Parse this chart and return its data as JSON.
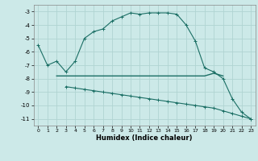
{
  "xlabel": "Humidex (Indice chaleur)",
  "ylabel": "",
  "bg_color": "#cce9e8",
  "grid_color": "#b0d4d2",
  "line_color": "#1a6e64",
  "curve1_x": [
    0,
    1,
    2,
    3,
    4,
    5,
    6,
    7,
    8,
    9,
    10,
    11,
    12,
    13,
    14,
    15,
    16,
    17,
    18,
    19,
    20,
    21,
    22,
    23
  ],
  "curve1_y": [
    -5.5,
    -7.0,
    -6.7,
    -7.5,
    -6.7,
    -5.0,
    -4.5,
    -4.3,
    -3.7,
    -3.4,
    -3.1,
    -3.2,
    -3.1,
    -3.1,
    -3.1,
    -3.2,
    -4.0,
    -5.2,
    -7.2,
    -7.5,
    -8.0,
    -9.5,
    -10.5,
    -11.0
  ],
  "curve2_x": [
    2,
    3,
    4,
    5,
    6,
    7,
    8,
    9,
    10,
    11,
    12,
    13,
    14,
    15,
    16,
    17,
    18,
    19,
    20
  ],
  "curve2_y": [
    -7.8,
    -7.8,
    -7.8,
    -7.8,
    -7.8,
    -7.8,
    -7.8,
    -7.8,
    -7.8,
    -7.8,
    -7.8,
    -7.8,
    -7.8,
    -7.8,
    -7.8,
    -7.8,
    -7.8,
    -7.6,
    -7.8
  ],
  "curve3_x": [
    3,
    4,
    5,
    6,
    7,
    8,
    9,
    10,
    11,
    12,
    13,
    14,
    15,
    16,
    17,
    18,
    19,
    20,
    21,
    22,
    23
  ],
  "curve3_y": [
    -8.6,
    -8.7,
    -8.8,
    -8.9,
    -9.0,
    -9.1,
    -9.2,
    -9.3,
    -9.4,
    -9.5,
    -9.6,
    -9.7,
    -9.8,
    -9.9,
    -10.0,
    -10.1,
    -10.2,
    -10.4,
    -10.6,
    -10.8,
    -11.0
  ],
  "ylim": [
    -11.5,
    -2.5
  ],
  "xlim": [
    -0.5,
    23.5
  ],
  "yticks": [
    -3,
    -4,
    -5,
    -6,
    -7,
    -8,
    -9,
    -10,
    -11
  ],
  "xticks": [
    0,
    1,
    2,
    3,
    4,
    5,
    6,
    7,
    8,
    9,
    10,
    11,
    12,
    13,
    14,
    15,
    16,
    17,
    18,
    19,
    20,
    21,
    22,
    23
  ]
}
